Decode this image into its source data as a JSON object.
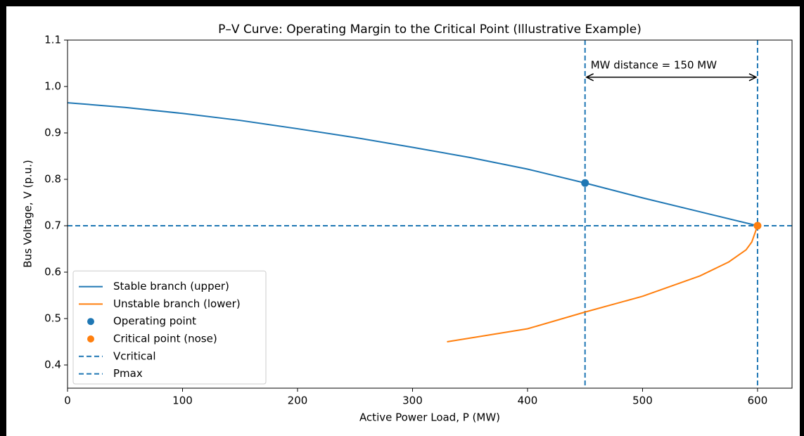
{
  "chart_data": {
    "type": "line",
    "title": "P–V Curve: Operating Margin to the Critical Point (Illustrative Example)",
    "xlabel": "Active Power Load, P (MW)",
    "ylabel": "Bus Voltage, V (p.u.)",
    "xlim": [
      0,
      630
    ],
    "ylim": [
      0.35,
      1.1
    ],
    "xticks": [
      0,
      100,
      200,
      300,
      400,
      500,
      600
    ],
    "yticks": [
      0.4,
      0.5,
      0.6,
      0.7,
      0.8,
      0.9,
      {
        "value": 1,
        "label": "1.0"
      },
      1.1
    ],
    "legend": "lower left",
    "series": [
      {
        "name": "Stable branch (upper)",
        "type": "line",
        "color": "#1f77b4",
        "x": [
          0,
          50,
          100,
          150,
          200,
          250,
          300,
          350,
          400,
          450,
          500,
          550,
          600
        ],
        "values": [
          0.965,
          0.955,
          0.942,
          0.927,
          0.909,
          0.89,
          0.869,
          0.847,
          0.822,
          0.792,
          0.76,
          0.73,
          0.7
        ]
      },
      {
        "name": "Unstable branch (lower)",
        "type": "line",
        "color": "#ff7f0e",
        "x": [
          330,
          350,
          400,
          450,
          500,
          550,
          575,
          590,
          595,
          600
        ],
        "values": [
          0.45,
          0.458,
          0.478,
          0.514,
          0.548,
          0.592,
          0.622,
          0.648,
          0.665,
          0.7
        ]
      },
      {
        "name": "Operating point",
        "type": "scatter",
        "color": "#1f77b4",
        "x": [
          450
        ],
        "values": [
          0.792
        ]
      },
      {
        "name": "Critical point (nose)",
        "type": "scatter",
        "color": "#ff7f0e",
        "x": [
          600
        ],
        "values": [
          0.7
        ]
      }
    ],
    "hlines": [
      {
        "name": "Vcritical",
        "y": 0.7,
        "color": "#1f77b4"
      }
    ],
    "vlines": [
      {
        "x": 450,
        "color": "#1f77b4"
      },
      {
        "name": "Pmax",
        "x": 600,
        "color": "#1f77b4"
      }
    ],
    "annotation": {
      "text": "MW distance = 150 MW",
      "x1": 450,
      "x2": 600,
      "y": 1.02
    }
  }
}
